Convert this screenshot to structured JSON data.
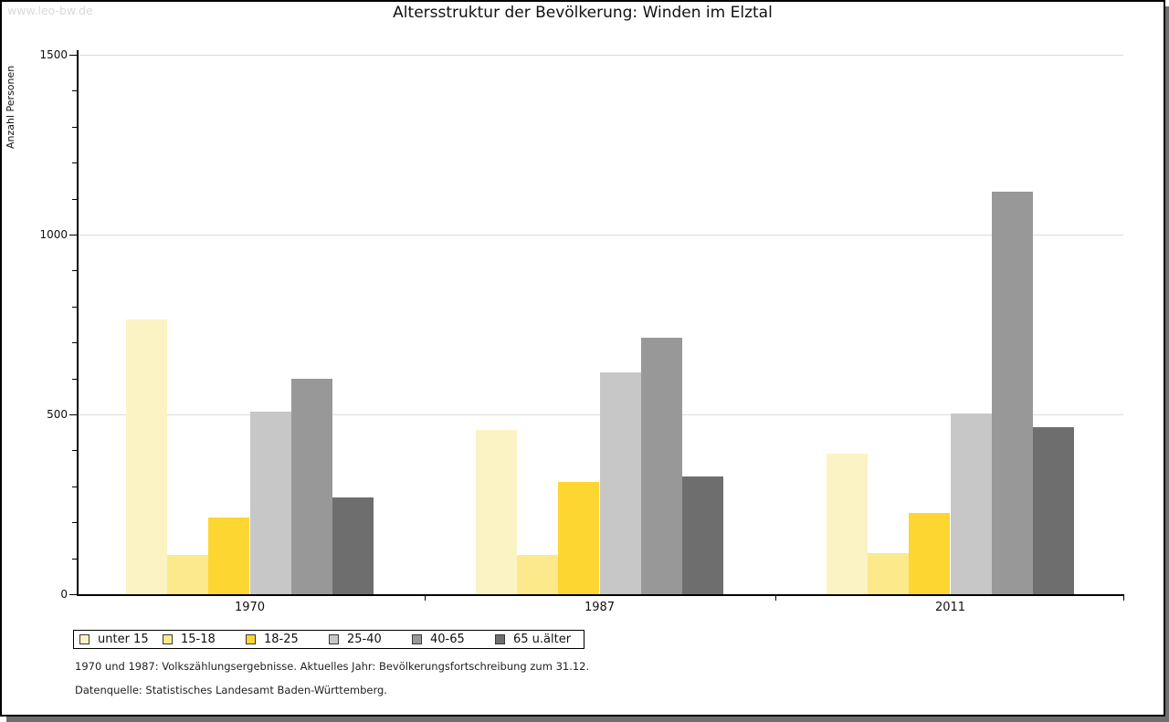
{
  "watermark": "www.leo-bw.de",
  "title": "Altersstruktur der Bevölkerung: Winden im Elztal",
  "footnotes": [
    "1970 und 1987: Volkszählungsergebnisse. Aktuelles Jahr: Bevölkerungsfortschreibung zum 31.12.",
    "Datenquelle: Statistisches Landesamt Baden-Württemberg."
  ],
  "colors": {
    "axis": "#000000",
    "grid": "#DCDCDC",
    "watermark": "#D9D9D9",
    "shadow": "#6F6F6F",
    "background": "#FFFFFF"
  },
  "chart_data": {
    "type": "bar",
    "title": "Altersstruktur der Bevölkerung: Winden im Elztal",
    "xlabel": "",
    "ylabel": "Anzahl Personen",
    "ylim": [
      0,
      1500
    ],
    "ytick_major": [
      0,
      500,
      1000,
      1500
    ],
    "ytick_minor_step": 100,
    "grid": "horizontal lines at major ticks only",
    "legend_position": "boxed legend bottom-left below axis",
    "categories": [
      "1970",
      "1987",
      "2011"
    ],
    "series": [
      {
        "name": "unter 15",
        "color": "#FBF3C4",
        "values": [
          765,
          457,
          390
        ]
      },
      {
        "name": "15-18",
        "color": "#FCE98B",
        "values": [
          110,
          110,
          114
        ]
      },
      {
        "name": "18-25",
        "color": "#FDD632",
        "values": [
          213,
          312,
          226
        ]
      },
      {
        "name": "25-40",
        "color": "#C7C7C7",
        "values": [
          508,
          616,
          503
        ]
      },
      {
        "name": "40-65",
        "color": "#989898",
        "values": [
          600,
          714,
          1119
        ]
      },
      {
        "name": "65 u.älter",
        "color": "#6E6E6E",
        "values": [
          270,
          327,
          464
        ]
      }
    ]
  }
}
